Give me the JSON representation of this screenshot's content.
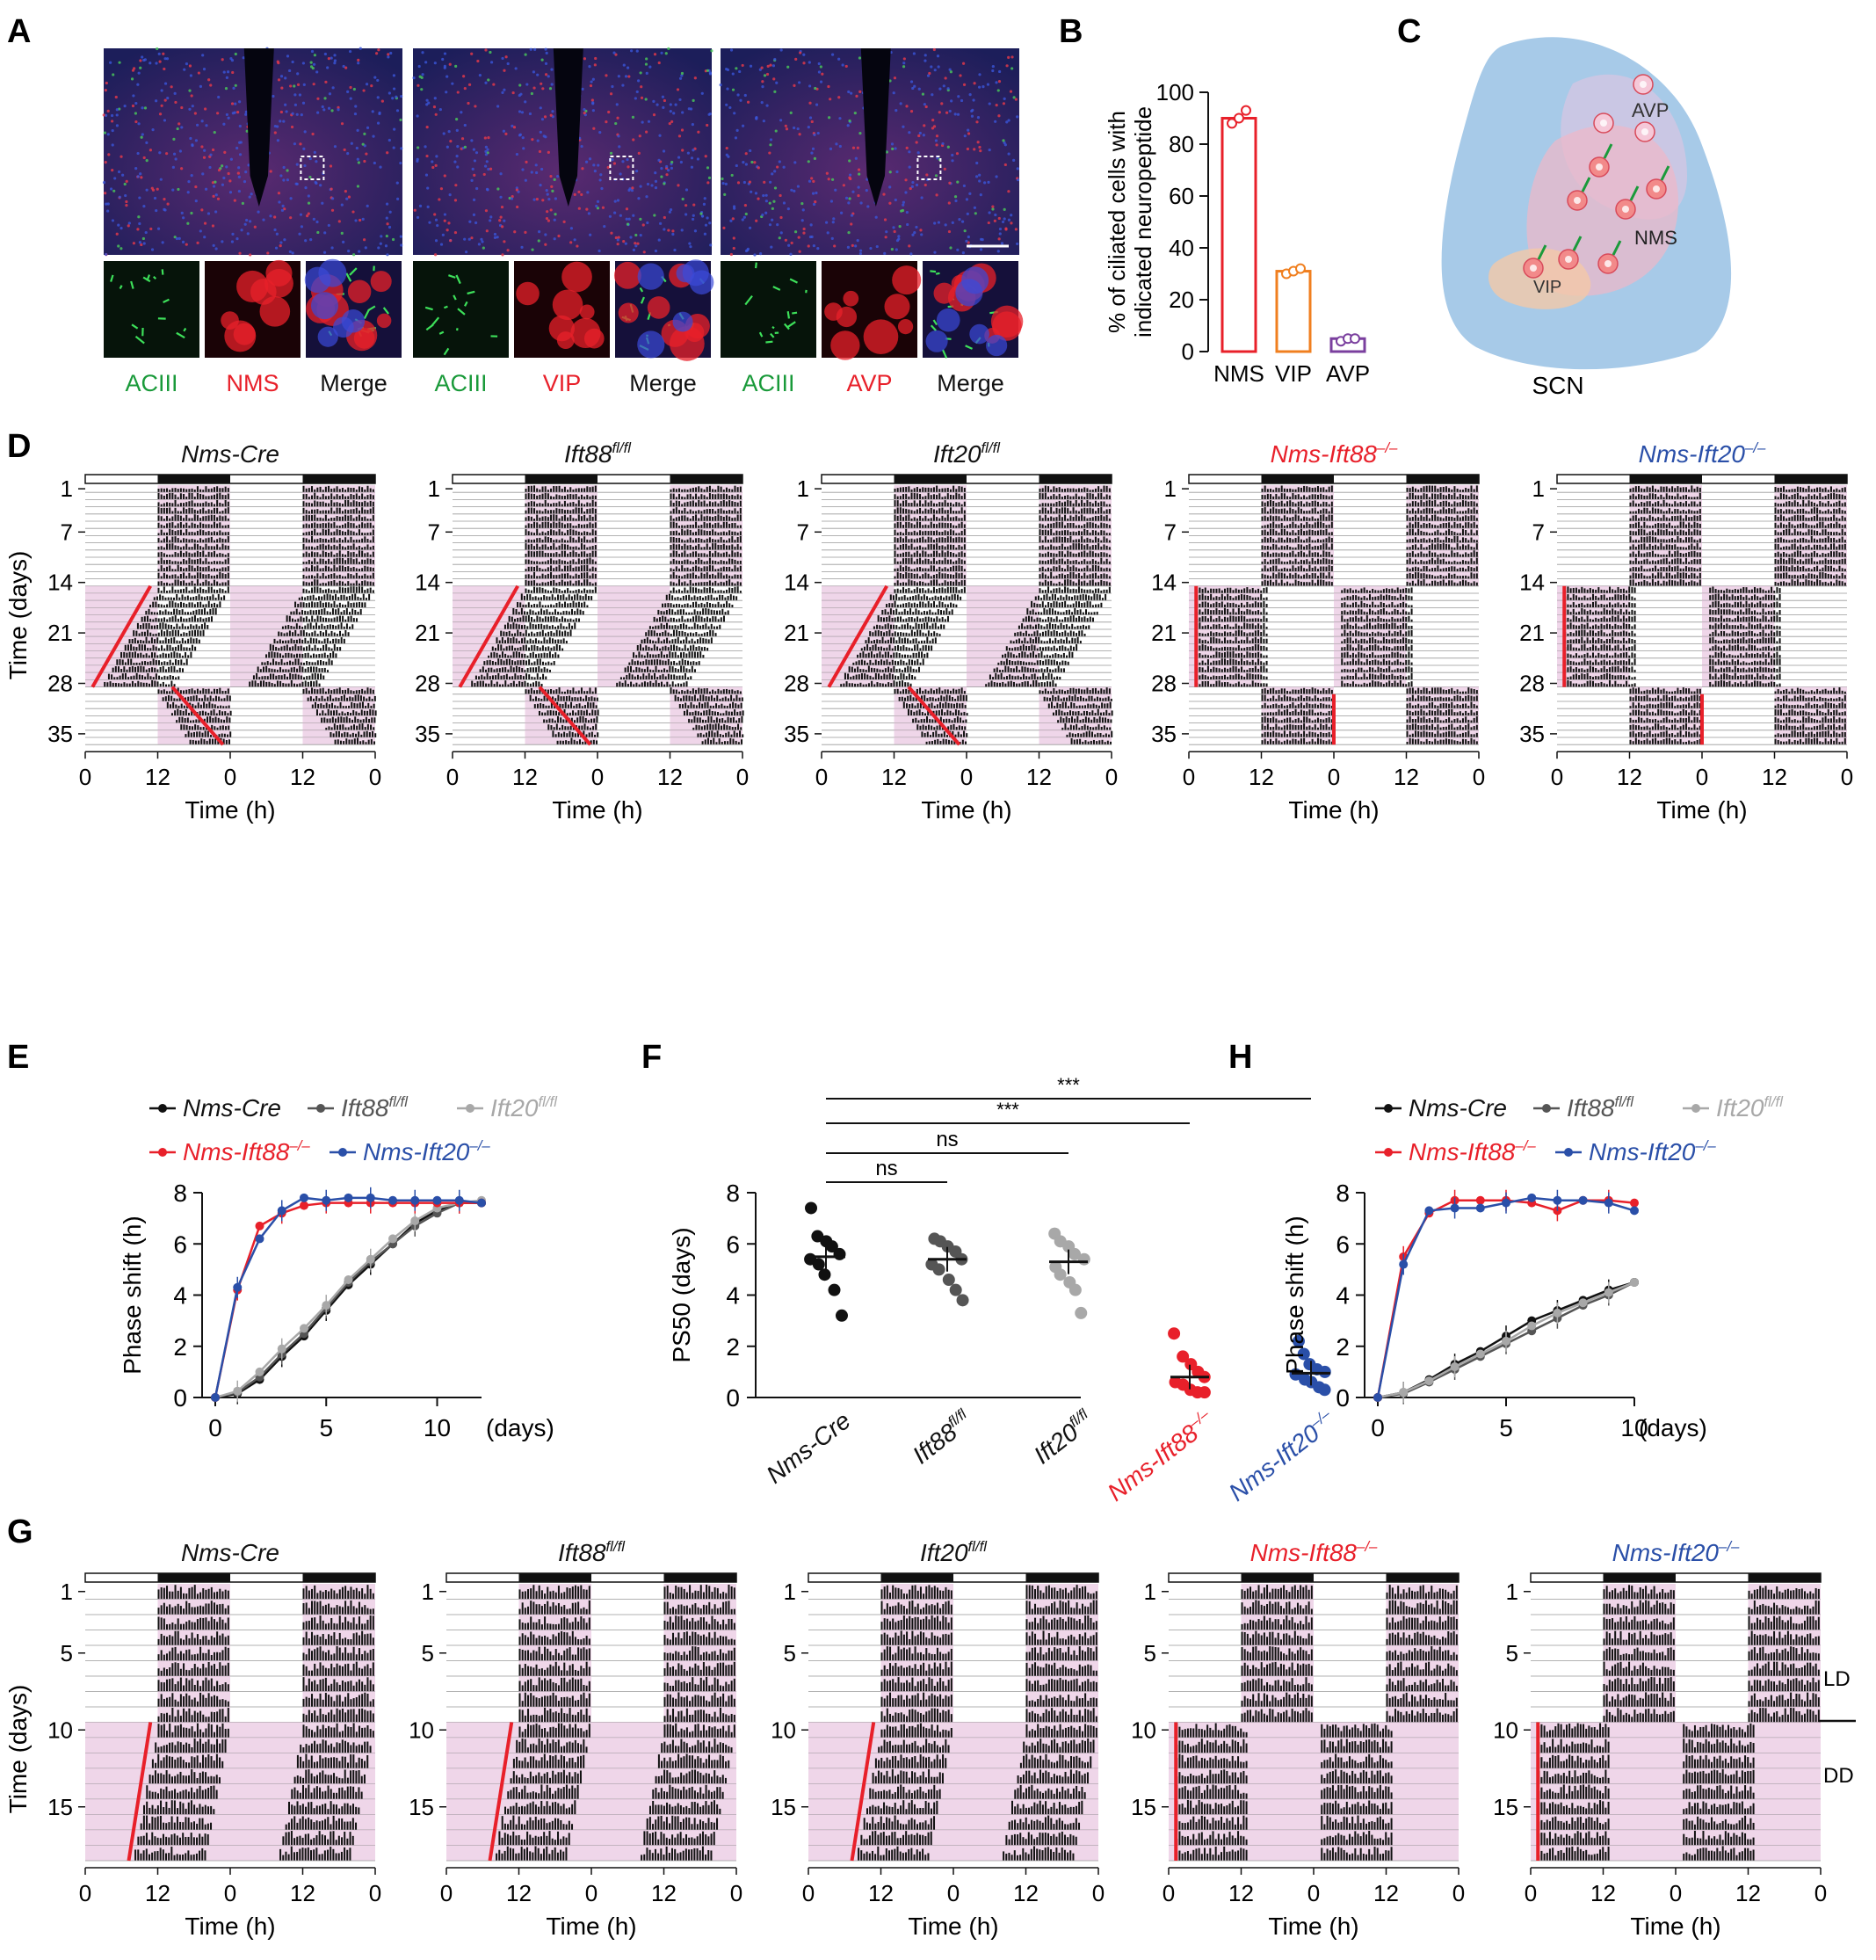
{
  "panel_letters": [
    "A",
    "B",
    "C",
    "D",
    "E",
    "F",
    "G",
    "H"
  ],
  "colors": {
    "red": "#e8202a",
    "blue": "#2a4fa8",
    "green": "#1a9a3a",
    "orange": "#f07f1f",
    "purple": "#7a3f9e",
    "pink": "#e8c4e0",
    "black": "#111111",
    "dgray": "#555555",
    "lgray": "#a8a8a8",
    "scnblue": "#8ab8e0"
  },
  "panelA": {
    "groups": [
      {
        "labels": [
          {
            "text": "ACIII",
            "color": "#1a9a3a"
          },
          {
            "text": "NMS",
            "color": "#e8202a"
          },
          {
            "text": "Merge",
            "color": "#111111"
          }
        ]
      },
      {
        "labels": [
          {
            "text": "ACIII",
            "color": "#1a9a3a"
          },
          {
            "text": "VIP",
            "color": "#e8202a"
          },
          {
            "text": "Merge",
            "color": "#111111"
          }
        ]
      },
      {
        "labels": [
          {
            "text": "ACIII",
            "color": "#1a9a3a"
          },
          {
            "text": "AVP",
            "color": "#e8202a"
          },
          {
            "text": "Merge",
            "color": "#111111"
          }
        ]
      }
    ]
  },
  "panelC": {
    "labels": {
      "avp": "AVP",
      "nms": "NMS",
      "vip": "VIP",
      "scn": "SCN"
    }
  },
  "panelD": {
    "genotypes": [
      {
        "name": "Nms-Cre",
        "sup": "",
        "color": "#111111"
      },
      {
        "name": "Ift88",
        "sup": "fl/fl",
        "color": "#111111"
      },
      {
        "name": "Ift20",
        "sup": "fl/fl",
        "color": "#111111"
      },
      {
        "name": "Nms-Ift88",
        "sup": "–/–",
        "color": "#e8202a"
      },
      {
        "name": "Nms-Ift20",
        "sup": "–/–",
        "color": "#2a4fa8"
      }
    ],
    "ylabel": "Time (days)",
    "xlabel": "Time (h)",
    "yticks": [
      "1",
      "7",
      "14",
      "21",
      "28",
      "35"
    ],
    "xticks": [
      "0",
      "12",
      "0",
      "12",
      "0"
    ]
  },
  "panelG": {
    "ylabel": "Time (days)",
    "xlabel": "Time (h)",
    "yticks": [
      "1",
      "5",
      "10",
      "15"
    ],
    "xticks": [
      "0",
      "12",
      "0",
      "12",
      "0"
    ],
    "ld_label": "LD",
    "dd_label": "DD"
  },
  "legendEH": {
    "items": [
      {
        "name": "Nms-Cre",
        "sup": "",
        "color": "#111111"
      },
      {
        "name": "Ift88",
        "sup": "fl/fl",
        "color": "#555555"
      },
      {
        "name": "Ift20",
        "sup": "fl/fl",
        "color": "#a8a8a8"
      },
      {
        "name": "Nms-Ift88",
        "sup": "–/–",
        "color": "#e8202a"
      },
      {
        "name": "Nms-Ift20",
        "sup": "–/–",
        "color": "#2a4fa8"
      }
    ]
  },
  "chart_data": [
    {
      "panel": "B",
      "type": "bar",
      "ylabel": "% of ciliated cells with indicated neuropeptide",
      "categories": [
        "NMS",
        "VIP",
        "AVP"
      ],
      "values": [
        90,
        31,
        5
      ],
      "points": [
        [
          88,
          90,
          93
        ],
        [
          30,
          31,
          32
        ],
        [
          4,
          5,
          5
        ]
      ],
      "bar_colors": [
        "#e8202a",
        "#f07f1f",
        "#7a3f9e"
      ],
      "ylim": [
        0,
        100
      ],
      "yticks": [
        0,
        20,
        40,
        60,
        80,
        100
      ]
    },
    {
      "panel": "E",
      "type": "line",
      "ylabel": "Phase shift (h)",
      "xlabel": "(days)",
      "xlim": [
        0,
        12
      ],
      "ylim": [
        0,
        8
      ],
      "xticks": [
        0,
        5,
        10
      ],
      "yticks": [
        0,
        2,
        4,
        6,
        8
      ],
      "x": [
        0,
        1,
        2,
        3,
        4,
        5,
        6,
        7,
        8,
        9,
        10,
        11,
        12
      ],
      "series": [
        {
          "name": "Nms-Cre",
          "color": "#111111",
          "values": [
            0,
            0.15,
            0.7,
            1.6,
            2.4,
            3.4,
            4.4,
            5.2,
            6.0,
            6.8,
            7.3,
            7.6,
            7.6
          ]
        },
        {
          "name": "Ift88 fl/fl",
          "color": "#555555",
          "values": [
            0,
            0.2,
            0.8,
            1.7,
            2.5,
            3.5,
            4.5,
            5.3,
            6.0,
            6.7,
            7.2,
            7.6,
            7.6
          ]
        },
        {
          "name": "Ift20 fl/fl",
          "color": "#a8a8a8",
          "values": [
            0,
            0.25,
            1.0,
            1.9,
            2.7,
            3.6,
            4.6,
            5.4,
            6.2,
            6.9,
            7.4,
            7.6,
            7.7
          ]
        },
        {
          "name": "Nms-Ift88 –/–",
          "color": "#e8202a",
          "values": [
            0,
            4.2,
            6.7,
            7.2,
            7.5,
            7.6,
            7.6,
            7.6,
            7.6,
            7.6,
            7.6,
            7.6,
            7.6
          ]
        },
        {
          "name": "Nms-Ift20 –/–",
          "color": "#2a4fa8",
          "values": [
            0,
            4.3,
            6.2,
            7.3,
            7.8,
            7.7,
            7.8,
            7.8,
            7.7,
            7.7,
            7.7,
            7.7,
            7.6
          ]
        }
      ]
    },
    {
      "panel": "F",
      "type": "scatter",
      "ylabel": "PS50 (days)",
      "ylim": [
        0,
        8
      ],
      "yticks": [
        0,
        2,
        4,
        6,
        8
      ],
      "categories": [
        "Nms-Cre",
        "Ift88fl/fl",
        "Ift20fl/fl",
        "Nms-Ift88–/–",
        "Nms-Ift20–/–"
      ],
      "means": [
        5.5,
        5.4,
        5.3,
        0.8,
        0.95
      ],
      "points": [
        [
          7.4,
          6.3,
          6.1,
          5.9,
          5.6,
          5.4,
          5.2,
          4.8,
          4.2,
          3.2
        ],
        [
          6.2,
          6.1,
          5.9,
          5.7,
          5.4,
          5.2,
          5.0,
          4.6,
          4.2,
          3.8
        ],
        [
          6.4,
          6.1,
          5.9,
          5.6,
          5.4,
          5.1,
          4.8,
          4.5,
          4.2,
          3.3
        ],
        [
          2.5,
          1.6,
          1.3,
          1.0,
          0.8,
          0.6,
          0.5,
          0.3,
          0.2,
          0.2
        ],
        [
          2.2,
          1.7,
          1.3,
          1.1,
          1.0,
          0.9,
          0.7,
          0.6,
          0.4,
          0.3
        ]
      ],
      "colors": [
        "#111111",
        "#555555",
        "#a8a8a8",
        "#e8202a",
        "#2a4fa8"
      ],
      "significance": [
        {
          "from": 0,
          "to": 1,
          "label": "ns"
        },
        {
          "from": 0,
          "to": 2,
          "label": "ns"
        },
        {
          "from": 0,
          "to": 3,
          "label": "***"
        },
        {
          "from": 0,
          "to": 4,
          "label": "***"
        }
      ]
    },
    {
      "panel": "H",
      "type": "line",
      "ylabel": "Phase shift (h)",
      "xlabel": "(days)",
      "xlim": [
        0,
        10
      ],
      "ylim": [
        0,
        8
      ],
      "xticks": [
        0,
        5,
        10
      ],
      "yticks": [
        0,
        2,
        4,
        6,
        8
      ],
      "x": [
        0,
        1,
        2,
        3,
        4,
        5,
        6,
        7,
        8,
        9,
        10
      ],
      "series": [
        {
          "name": "Nms-Cre",
          "color": "#111111",
          "values": [
            0,
            0.2,
            0.7,
            1.3,
            1.8,
            2.4,
            3.0,
            3.4,
            3.8,
            4.2,
            4.5
          ]
        },
        {
          "name": "Ift88 fl/fl",
          "color": "#555555",
          "values": [
            0,
            0.15,
            0.6,
            1.1,
            1.6,
            2.1,
            2.6,
            3.1,
            3.6,
            4.0,
            4.5
          ]
        },
        {
          "name": "Ift20 fl/fl",
          "color": "#a8a8a8",
          "values": [
            0,
            0.2,
            0.65,
            1.2,
            1.7,
            2.2,
            2.8,
            3.3,
            3.7,
            4.1,
            4.5
          ]
        },
        {
          "name": "Nms-Ift88 –/–",
          "color": "#e8202a",
          "values": [
            0,
            5.5,
            7.2,
            7.7,
            7.7,
            7.7,
            7.6,
            7.3,
            7.7,
            7.7,
            7.6
          ]
        },
        {
          "name": "Nms-Ift20 –/–",
          "color": "#2a4fa8",
          "values": [
            0,
            5.2,
            7.3,
            7.4,
            7.4,
            7.6,
            7.8,
            7.7,
            7.7,
            7.6,
            7.3
          ]
        }
      ]
    }
  ]
}
